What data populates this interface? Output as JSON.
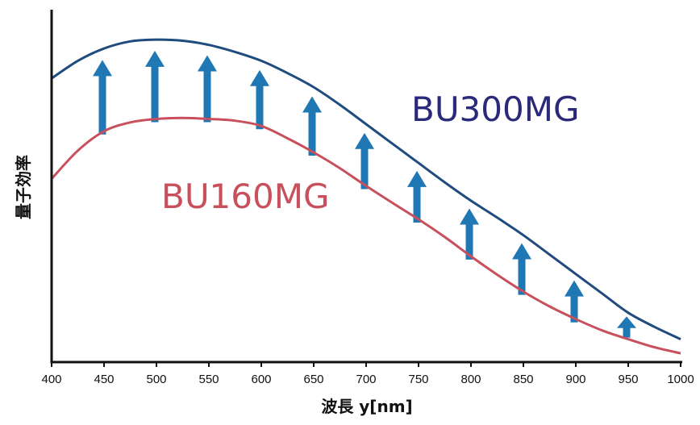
{
  "chart_data": {
    "type": "line",
    "title": "",
    "xlabel": "波長 y[nm]",
    "ylabel": "量子効率",
    "xlim": [
      400,
      1000
    ],
    "x_ticks": [
      "400",
      "450",
      "500",
      "550",
      "600",
      "650",
      "700",
      "750",
      "800",
      "850",
      "900",
      "950",
      "1000"
    ],
    "y_ticks_shown": false,
    "grid": false,
    "series": [
      {
        "name": "BU300MG",
        "color": "#1f4b7e",
        "label_color": "#2b2a7a",
        "x": [
          400,
          425,
          450,
          475,
          500,
          525,
          550,
          575,
          600,
          625,
          650,
          675,
          700,
          725,
          750,
          775,
          800,
          825,
          850,
          875,
          900,
          925,
          950,
          975,
          1000
        ],
        "y": [
          0.805,
          0.855,
          0.89,
          0.91,
          0.915,
          0.912,
          0.9,
          0.88,
          0.855,
          0.82,
          0.78,
          0.73,
          0.675,
          0.62,
          0.565,
          0.51,
          0.458,
          0.41,
          0.36,
          0.305,
          0.25,
          0.195,
          0.14,
          0.1,
          0.065
        ]
      },
      {
        "name": "BU160MG",
        "color": "#c8505c",
        "label_color": "#c8505c",
        "x": [
          400,
          425,
          450,
          475,
          500,
          525,
          550,
          575,
          600,
          625,
          650,
          675,
          700,
          725,
          750,
          775,
          800,
          825,
          850,
          875,
          900,
          925,
          950,
          975,
          1000
        ],
        "y": [
          0.52,
          0.6,
          0.655,
          0.68,
          0.69,
          0.693,
          0.69,
          0.685,
          0.67,
          0.635,
          0.595,
          0.55,
          0.5,
          0.452,
          0.405,
          0.355,
          0.3,
          0.248,
          0.2,
          0.158,
          0.122,
          0.09,
          0.065,
          0.042,
          0.025
        ]
      }
    ],
    "annotations": {
      "arrow_color": "#1f77b4",
      "arrows_description": "improvement arrows",
      "arrow_x": [
        450,
        500,
        550,
        600,
        650,
        700,
        750,
        800,
        850,
        900,
        950
      ]
    }
  }
}
